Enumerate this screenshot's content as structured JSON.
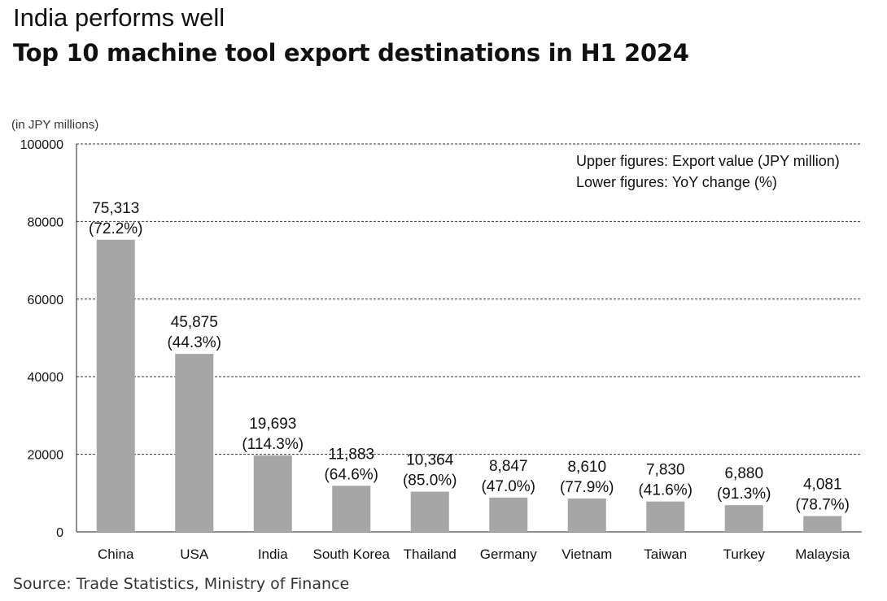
{
  "header": {
    "subtitle": "India performs well",
    "title": "Top 10 machine tool export destinations in H1 2024"
  },
  "footer": {
    "source": "Source: Trade Statistics, Ministry of Finance"
  },
  "colors": {
    "bar": "#a6a6a6",
    "grid": "#333333"
  },
  "chart_data": {
    "type": "bar",
    "ylabel": "(in JPY millions)",
    "ylim": [
      0,
      100000
    ],
    "yticks": [
      0,
      20000,
      40000,
      60000,
      80000,
      100000
    ],
    "ytick_labels": [
      "0",
      "20000",
      "40000",
      "60000",
      "80000",
      "100000"
    ],
    "grid": "dashed horizontal",
    "annotation": [
      "Upper figures: Export value (JPY million)",
      "Lower figures: YoY change (%)"
    ],
    "categories": [
      "China",
      "USA",
      "India",
      "South Korea",
      "Thailand",
      "Germany",
      "Vietnam",
      "Taiwan",
      "Turkey",
      "Malaysia"
    ],
    "values": [
      75313,
      45875,
      19693,
      11883,
      10364,
      8847,
      8610,
      7830,
      6880,
      4081
    ],
    "value_labels": [
      "75,313",
      "45,875",
      "19,693",
      "11,883",
      "10,364",
      "8,847",
      "8,610",
      "7,830",
      "6,880",
      "4,081"
    ],
    "yoy_labels": [
      "(72.2%)",
      "(44.3%)",
      "(114.3%)",
      "(64.6%)",
      "(85.0%)",
      "(47.0%)",
      "(77.9%)",
      "(41.6%)",
      "(91.3%)",
      "(78.7%)"
    ]
  }
}
